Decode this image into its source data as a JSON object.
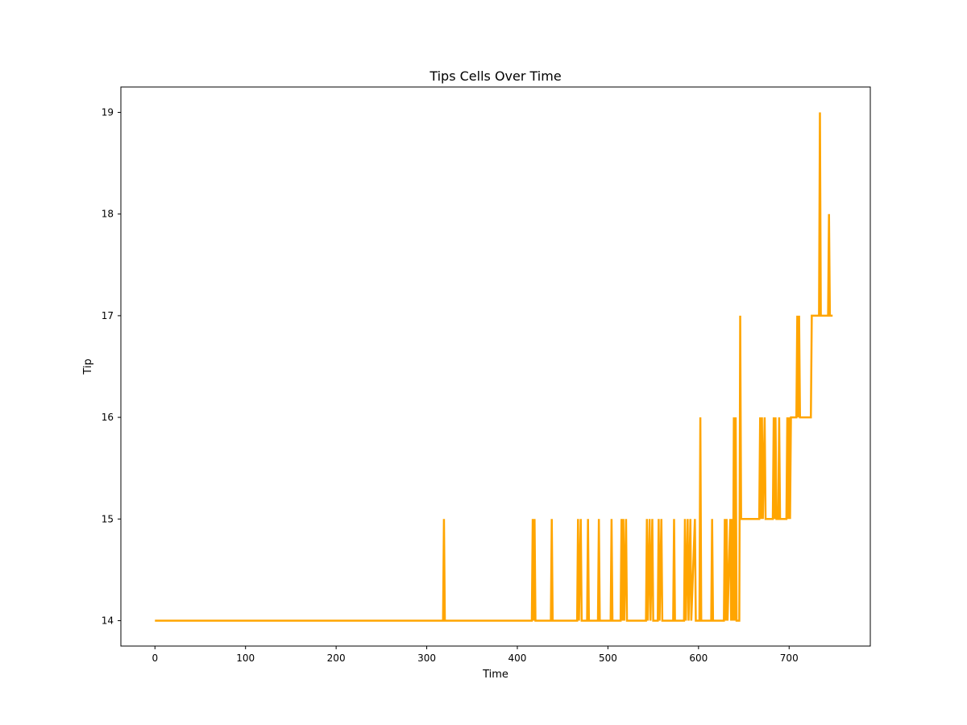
{
  "chart_data": {
    "type": "line",
    "title": "Tips Cells Over Time",
    "xlabel": "Time",
    "ylabel": "Tip",
    "xlim": [
      -37.6,
      789.6
    ],
    "ylim": [
      13.75,
      19.25
    ],
    "xticks": [
      0,
      100,
      200,
      300,
      400,
      500,
      600,
      700
    ],
    "yticks": [
      14,
      15,
      16,
      17,
      18,
      19
    ],
    "grid": false,
    "legend": "none",
    "color": "#FFA500",
    "series": [
      {
        "points": [
          [
            0,
            14
          ],
          [
            318,
            14
          ],
          [
            319,
            15
          ],
          [
            320,
            14
          ],
          [
            416,
            14
          ],
          [
            417,
            15
          ],
          [
            418,
            14
          ],
          [
            419,
            15
          ],
          [
            420,
            14
          ],
          [
            437,
            14
          ],
          [
            438,
            15
          ],
          [
            439,
            14
          ],
          [
            466,
            14
          ],
          [
            467,
            15
          ],
          [
            468,
            14
          ],
          [
            470,
            15
          ],
          [
            471,
            14
          ],
          [
            477,
            14
          ],
          [
            478,
            15
          ],
          [
            479,
            14
          ],
          [
            489,
            14
          ],
          [
            490,
            15
          ],
          [
            491,
            14
          ],
          [
            503,
            14
          ],
          [
            504,
            15
          ],
          [
            505,
            14
          ],
          [
            514,
            14
          ],
          [
            515,
            15
          ],
          [
            516,
            14
          ],
          [
            517,
            15
          ],
          [
            518,
            14
          ],
          [
            520,
            15
          ],
          [
            521,
            14
          ],
          [
            542,
            14
          ],
          [
            543,
            15
          ],
          [
            544,
            14
          ],
          [
            546,
            15
          ],
          [
            547,
            14
          ],
          [
            549,
            15
          ],
          [
            550,
            14
          ],
          [
            555,
            14
          ],
          [
            556,
            15
          ],
          [
            557,
            14
          ],
          [
            559,
            15
          ],
          [
            560,
            14
          ],
          [
            572,
            14
          ],
          [
            573,
            15
          ],
          [
            574,
            14
          ],
          [
            584,
            14
          ],
          [
            585,
            15
          ],
          [
            586,
            14
          ],
          [
            588,
            15
          ],
          [
            589,
            14
          ],
          [
            591,
            15
          ],
          [
            592,
            14
          ],
          [
            596,
            15
          ],
          [
            597,
            14
          ],
          [
            601,
            14
          ],
          [
            602,
            16
          ],
          [
            603,
            14
          ],
          [
            614,
            14
          ],
          [
            615,
            15
          ],
          [
            616,
            14
          ],
          [
            628,
            14
          ],
          [
            629,
            15
          ],
          [
            630,
            14
          ],
          [
            631,
            15
          ],
          [
            632,
            14
          ],
          [
            635,
            15
          ],
          [
            636,
            14
          ],
          [
            637,
            15
          ],
          [
            638,
            14
          ],
          [
            639,
            16
          ],
          [
            640,
            14
          ],
          [
            641,
            16
          ],
          [
            642,
            14
          ],
          [
            645,
            14
          ],
          [
            646,
            17
          ],
          [
            647,
            15
          ],
          [
            667,
            15
          ],
          [
            668,
            16
          ],
          [
            669,
            15
          ],
          [
            670,
            16
          ],
          [
            671,
            15
          ],
          [
            673,
            16
          ],
          [
            674,
            15
          ],
          [
            682,
            15
          ],
          [
            683,
            16
          ],
          [
            684,
            15
          ],
          [
            685,
            16
          ],
          [
            686,
            15
          ],
          [
            688,
            15
          ],
          [
            689,
            16
          ],
          [
            690,
            15
          ],
          [
            697,
            15
          ],
          [
            698,
            16
          ],
          [
            699,
            15
          ],
          [
            700,
            16
          ],
          [
            701,
            15
          ],
          [
            702,
            16
          ],
          [
            708,
            16
          ],
          [
            709,
            17
          ],
          [
            710,
            16
          ],
          [
            711,
            17
          ],
          [
            712,
            16
          ],
          [
            724,
            16
          ],
          [
            725,
            17
          ],
          [
            733,
            17
          ],
          [
            734,
            19
          ],
          [
            735,
            17
          ],
          [
            743,
            17
          ],
          [
            744,
            18
          ],
          [
            745,
            17
          ],
          [
            748,
            17
          ]
        ]
      }
    ]
  }
}
